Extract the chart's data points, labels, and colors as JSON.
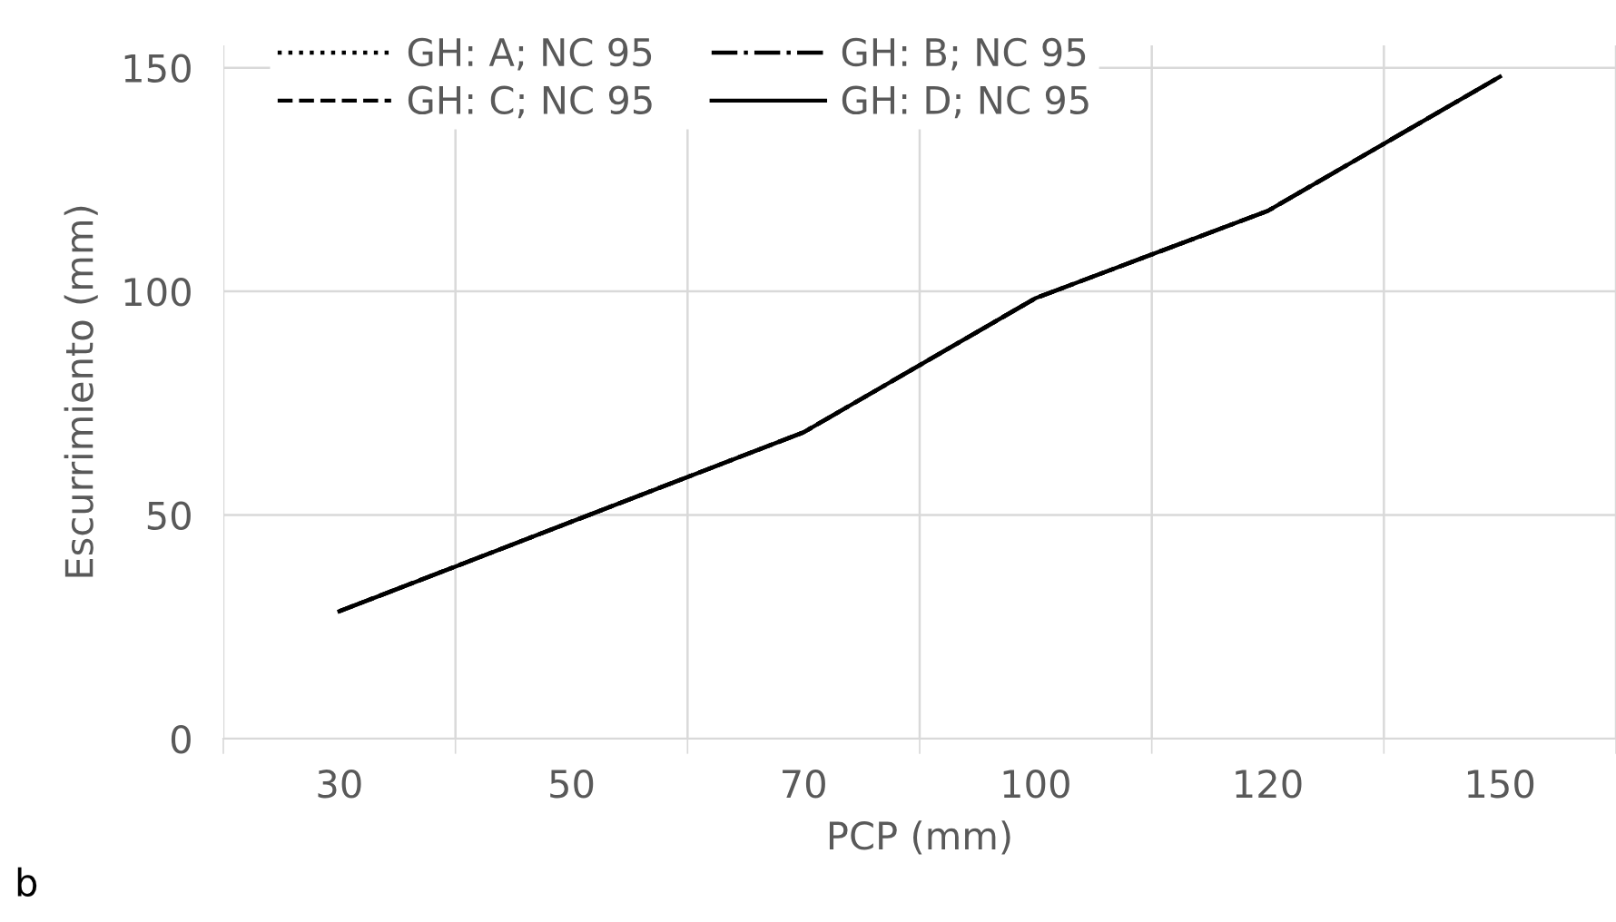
{
  "chart_data": {
    "type": "line",
    "xlabel": "PCP (mm)",
    "ylabel": "Escurrimiento (mm)",
    "categories": [
      "30",
      "50",
      "70",
      "100",
      "120",
      "150"
    ],
    "series": [
      {
        "name": "GH: A; NC 95",
        "color": "#000000",
        "line_style": "dotted",
        "values": [
          28.5,
          48.5,
          68.5,
          98.5,
          118,
          148
        ]
      },
      {
        "name": "GH: B; NC 95",
        "color": "#000000",
        "line_style": "dashdot",
        "values": [
          28.5,
          48.5,
          68.5,
          98.5,
          118,
          148
        ]
      },
      {
        "name": "GH: C; NC 95",
        "color": "#000000",
        "line_style": "dashed",
        "values": [
          28.5,
          48.5,
          68.5,
          98.5,
          118,
          148
        ]
      },
      {
        "name": "GH: D; NC 95",
        "color": "#000000",
        "line_style": "solid",
        "values": [
          28.5,
          48.5,
          68.5,
          98.5,
          118,
          148
        ]
      }
    ],
    "ylim": [
      0,
      155
    ],
    "yticks": [
      0,
      50,
      100,
      150
    ],
    "grid": true,
    "legend": "top left",
    "marker": "none",
    "annotations": [
      "b"
    ]
  }
}
